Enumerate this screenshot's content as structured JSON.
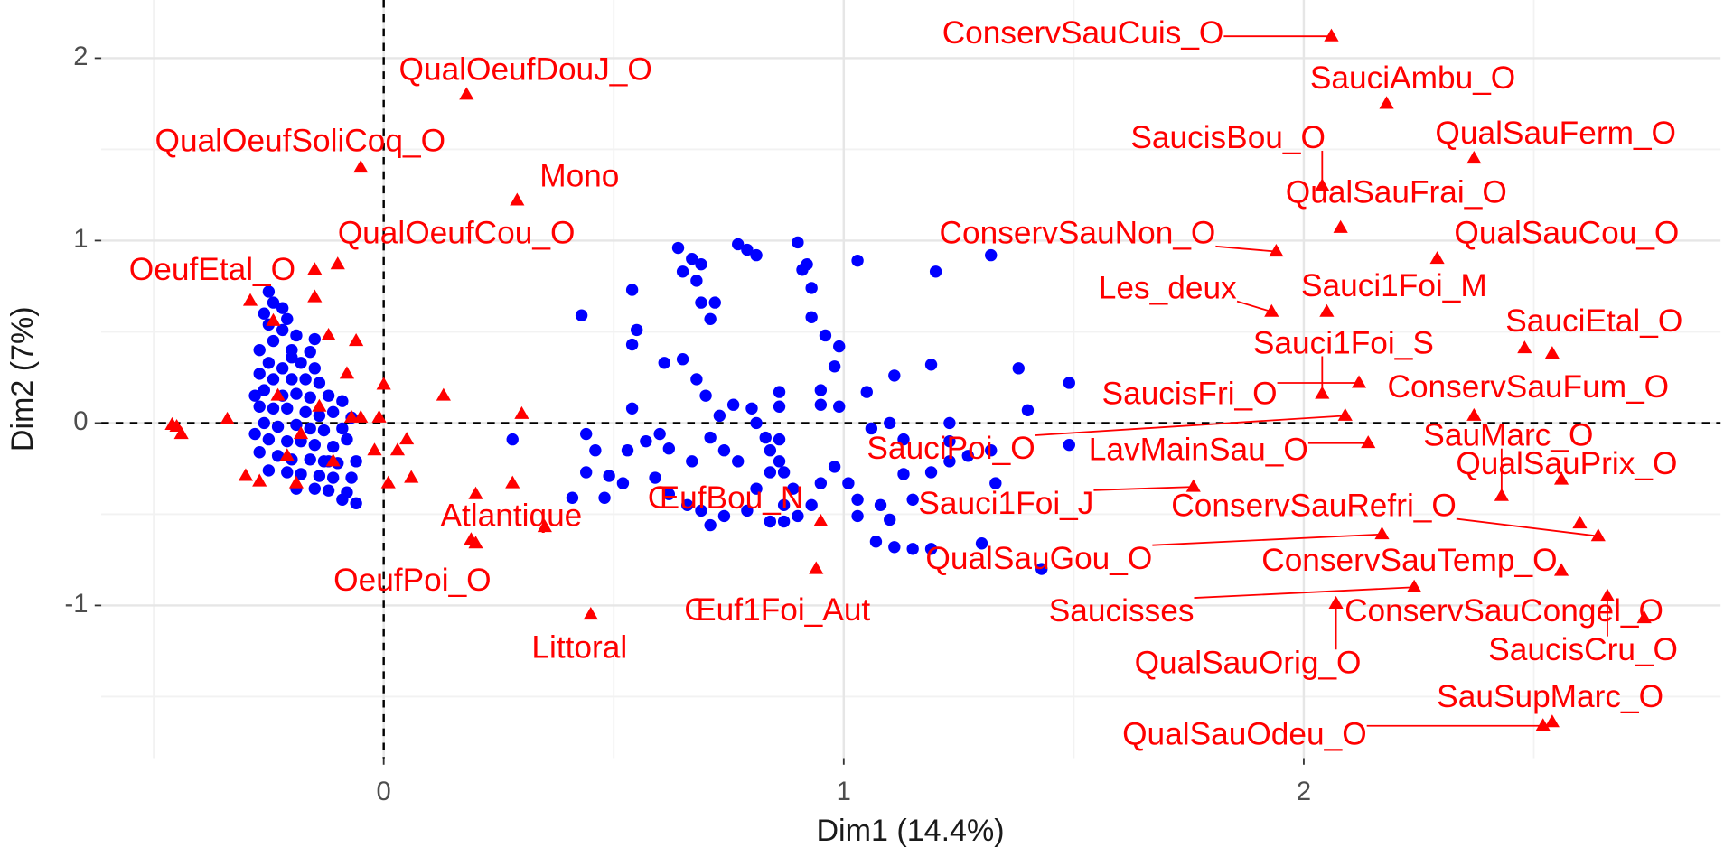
{
  "chart_data": {
    "type": "scatter",
    "x_label": "Dim1 (14.4%)",
    "y_label": "Dim2 (7%)",
    "xlim": [
      -0.614,
      2.906
    ],
    "ylim": [
      -1.837,
      2.319
    ],
    "xticks": [
      0,
      1,
      2
    ],
    "yticks": [
      -1,
      0,
      1,
      2
    ],
    "minor_xticks": [
      -0.5,
      0.5,
      1.5,
      2.5
    ],
    "minor_yticks": [
      -1.5,
      -0.5,
      0.5,
      1.5
    ],
    "grid": true,
    "hline": 0,
    "vline": 0,
    "series": [
      {
        "color": "#0000ff",
        "marker": "circle",
        "x": [
          -0.25,
          -0.24,
          -0.22,
          -0.26,
          -0.21,
          -0.22,
          -0.19,
          -0.24,
          -0.27,
          -0.2,
          -0.16,
          -0.25,
          -0.22,
          -0.18,
          -0.15,
          -0.27,
          -0.24,
          -0.2,
          -0.17,
          -0.14,
          -0.26,
          -0.22,
          -0.19,
          -0.16,
          -0.12,
          -0.09,
          -0.27,
          -0.24,
          -0.21,
          -0.17,
          -0.14,
          -0.11,
          -0.07,
          -0.26,
          -0.23,
          -0.19,
          -0.16,
          -0.13,
          -0.09,
          -0.28,
          -0.25,
          -0.21,
          -0.18,
          -0.15,
          -0.11,
          -0.08,
          -0.27,
          -0.23,
          -0.2,
          -0.16,
          -0.13,
          -0.1,
          -0.06,
          -0.25,
          -0.21,
          -0.18,
          -0.14,
          -0.11,
          -0.07,
          -0.19,
          -0.15,
          -0.12,
          -0.08,
          -0.06,
          -0.09,
          -0.28,
          -0.25,
          -0.2,
          -0.15,
          -0.12,
          0.43,
          0.54,
          0.55,
          0.54,
          0.61,
          0.65,
          0.68,
          0.7,
          0.64,
          0.67,
          0.69,
          0.65,
          0.68,
          0.71,
          0.72,
          0.69,
          0.77,
          0.79,
          0.81,
          0.9,
          0.92,
          0.93,
          0.93,
          0.91,
          0.96,
          0.99,
          0.98,
          0.95,
          1.03,
          1.2,
          1.32,
          1.38,
          1.4,
          1.49,
          1.19,
          1.11,
          1.05,
          0.99,
          0.95,
          0.86,
          0.86,
          0.8,
          0.76,
          0.73,
          0.71,
          0.74,
          0.77,
          0.81,
          0.83,
          0.84,
          0.86,
          0.87,
          0.89,
          0.87,
          0.9,
          0.93,
          0.95,
          0.98,
          1.01,
          1.03,
          1.03,
          1.06,
          1.1,
          1.13,
          1.13,
          1.15,
          1.19,
          1.23,
          1.23,
          1.23,
          1.27,
          1.32,
          1.33,
          1.08,
          1.1,
          1.07,
          1.11,
          1.15,
          1.19,
          1.3,
          1.43,
          1.49,
          0.6,
          0.62,
          0.57,
          0.54,
          0.53,
          0.49,
          0.44,
          0.41,
          0.48,
          0.62,
          0.66,
          0.69,
          0.71,
          0.74,
          0.79,
          0.81,
          0.84,
          0.87,
          0.84,
          0.86,
          0.67,
          0.59,
          0.52,
          0.44,
          0.28,
          0.46
        ],
        "values": [
          0.72,
          0.66,
          0.63,
          0.6,
          0.57,
          0.51,
          0.48,
          0.45,
          0.4,
          0.4,
          0.39,
          0.33,
          0.3,
          0.33,
          0.3,
          0.27,
          0.24,
          0.24,
          0.24,
          0.22,
          0.18,
          0.15,
          0.16,
          0.14,
          0.15,
          0.12,
          0.09,
          0.08,
          0.08,
          0.06,
          0.04,
          0.06,
          0.03,
          0,
          -0.02,
          -0.01,
          -0.03,
          -0.04,
          -0.03,
          -0.06,
          -0.09,
          -0.1,
          -0.1,
          -0.12,
          -0.13,
          -0.09,
          -0.16,
          -0.18,
          -0.2,
          -0.2,
          -0.21,
          -0.22,
          -0.21,
          -0.26,
          -0.27,
          -0.28,
          -0.29,
          -0.3,
          -0.3,
          -0.36,
          -0.36,
          -0.37,
          -0.38,
          -0.44,
          -0.42,
          0.15,
          0.54,
          0.36,
          0.46,
          -0.21,
          0.59,
          0.73,
          0.51,
          0.43,
          0.33,
          0.35,
          0.24,
          0.15,
          0.96,
          0.9,
          0.87,
          0.83,
          0.78,
          0.57,
          0.66,
          0.66,
          0.98,
          0.95,
          0.92,
          0.99,
          0.87,
          0.74,
          0.58,
          0.84,
          0.48,
          0.42,
          0.31,
          0.18,
          0.89,
          0.83,
          0.92,
          0.3,
          0.07,
          0.22,
          0.32,
          0.26,
          0.17,
          0.09,
          0.1,
          0.17,
          0.09,
          0.08,
          0.1,
          0.04,
          -0.08,
          -0.15,
          -0.21,
          0,
          -0.08,
          -0.15,
          -0.21,
          -0.27,
          -0.36,
          -0.45,
          -0.51,
          -0.45,
          -0.33,
          -0.24,
          -0.33,
          -0.42,
          -0.51,
          -0.03,
          0,
          -0.09,
          -0.28,
          -0.42,
          -0.27,
          -0.21,
          -0.1,
          0,
          -0.18,
          -0.15,
          -0.33,
          -0.45,
          -0.53,
          -0.65,
          -0.68,
          -0.69,
          -0.69,
          -0.66,
          -0.8,
          -0.12,
          -0.06,
          -0.14,
          -0.1,
          0.08,
          -0.15,
          -0.29,
          -0.27,
          -0.41,
          -0.41,
          -0.39,
          -0.45,
          -0.48,
          -0.56,
          -0.51,
          -0.48,
          -0.36,
          -0.54,
          -0.54,
          -0.27,
          -0.09,
          -0.21,
          -0.3,
          -0.33,
          -0.06,
          -0.09,
          -0.15
        ]
      },
      {
        "color": "#ff0000",
        "marker": "triangle",
        "labels": [
          "ConservSauCuis_O",
          "SauciAmbu_O",
          "QualSauFerm_O",
          "SaucisBou_O",
          "QualSauFrai_O",
          "QualSauCou_O",
          "ConservSauNon_O",
          "Les_deux",
          "Sauci1Foi_M",
          "SauciEtal_O",
          "Sauci1Foi_S",
          "SaucisFri_O",
          "ConservSauFum_O",
          "SauMarc_O",
          "LavMainSau_O",
          "SauciPoi_O",
          "QualSauPrix_O",
          "Sauci1Foi_J",
          "ConservSauRefri_O",
          "QualSauGou_O",
          "ConservSauTemp_O",
          "Saucisses",
          "ConservSauCongel_O",
          "QualSauOrig_O",
          "SaucisCru_O",
          "SauSupMarc_O",
          "QualSauOdeu_O",
          "QualOeufDouJ_O",
          "QualOeufSoliCoq_O",
          "Mono",
          "QualOeufCou_O",
          "OeufEtal_O",
          "Atlantique",
          "ŒufBou_N",
          "OeufPoi_O",
          "Œuf1Foi_Aut",
          "Littoral",
          null,
          null,
          null,
          null,
          null,
          null,
          null,
          null,
          null,
          null,
          null,
          null,
          null,
          null,
          null,
          null,
          null,
          null,
          null,
          null,
          null,
          null,
          null,
          null,
          null,
          null,
          null,
          null,
          null,
          null,
          null,
          null,
          null,
          null
        ],
        "x": [
          2.06,
          2.18,
          2.37,
          2.04,
          2.08,
          2.29,
          1.94,
          1.93,
          2.05,
          2.54,
          2.04,
          2.12,
          2.37,
          2.43,
          2.14,
          2.09,
          2.56,
          1.76,
          2.64,
          2.17,
          2.56,
          2.24,
          2.74,
          2.07,
          2.66,
          2.54,
          2.52,
          0.18,
          -0.05,
          0.29,
          -0.1,
          -0.15,
          0.35,
          0.95,
          0.2,
          0.94,
          0.45,
          -0.45,
          -0.44,
          -0.46,
          -0.34,
          -0.3,
          -0.27,
          -0.29,
          -0.24,
          -0.15,
          -0.12,
          -0.06,
          0.13,
          0.0,
          -0.05,
          -0.01,
          -0.02,
          0.03,
          0.05,
          0.06,
          0.01,
          0.3,
          0.28,
          0.2,
          0.19,
          -0.21,
          -0.18,
          -0.14,
          -0.11,
          -0.19,
          -0.23,
          -0.07,
          -0.08,
          2.48,
          2.6
        ],
        "values": [
          2.12,
          1.75,
          1.45,
          1.3,
          1.07,
          0.9,
          0.94,
          0.61,
          0.61,
          0.38,
          0.16,
          0.22,
          0.04,
          -0.4,
          -0.11,
          0.04,
          -0.31,
          -0.35,
          -0.62,
          -0.61,
          -0.81,
          -0.9,
          -1.07,
          -0.99,
          -0.95,
          -1.64,
          -1.66,
          1.8,
          1.4,
          1.22,
          0.87,
          0.84,
          -0.57,
          -0.54,
          -0.66,
          -0.8,
          -1.05,
          -0.02,
          -0.06,
          -0.01,
          0.02,
          -0.29,
          -0.32,
          0.67,
          0.56,
          0.69,
          0.48,
          0.45,
          0.15,
          0.21,
          0.03,
          0.03,
          -0.15,
          -0.15,
          -0.09,
          -0.3,
          -0.33,
          0.05,
          -0.33,
          -0.39,
          -0.64,
          -0.18,
          -0.06,
          0.09,
          -0.21,
          -0.33,
          0.15,
          0.03,
          0.27,
          0.41,
          -0.55
        ]
      }
    ]
  }
}
